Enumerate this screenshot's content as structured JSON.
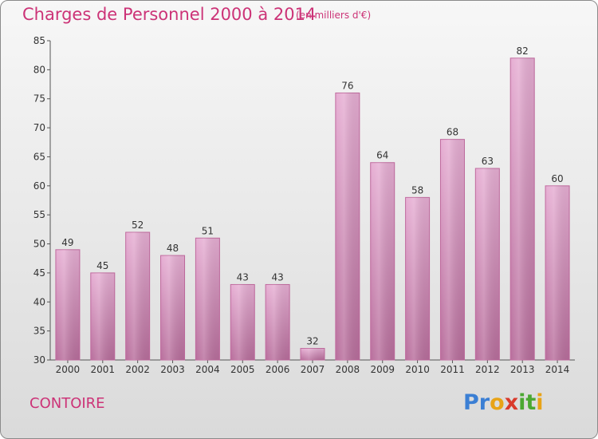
{
  "title": "Charges de Personnel 2000 à 2014",
  "subtitle": "(en milliers d'€)",
  "commune": "CONTOIRE",
  "logo": {
    "letters": [
      {
        "char": "P",
        "color": "#3b7fd4"
      },
      {
        "char": "r",
        "color": "#3b7fd4"
      },
      {
        "char": "o",
        "color": "#e8a317"
      },
      {
        "char": "x",
        "color": "#d93a2b"
      },
      {
        "char": "i",
        "color": "#4aa832"
      },
      {
        "char": "t",
        "color": "#4aa832"
      },
      {
        "char": "i",
        "color": "#e8a317"
      }
    ]
  },
  "chart_data": {
    "type": "bar",
    "title": "Charges de Personnel 2000 à 2014",
    "subtitle": "(en milliers d'€)",
    "categories": [
      "2000",
      "2001",
      "2002",
      "2003",
      "2004",
      "2005",
      "2006",
      "2007",
      "2008",
      "2009",
      "2010",
      "2011",
      "2012",
      "2013",
      "2014"
    ],
    "values": [
      49,
      45,
      52,
      48,
      51,
      43,
      43,
      32,
      76,
      64,
      58,
      68,
      63,
      82,
      60
    ],
    "ylim": [
      30,
      85
    ],
    "yticks": [
      30,
      35,
      40,
      45,
      50,
      55,
      60,
      65,
      70,
      75,
      80,
      85
    ],
    "grid": false,
    "bar_color": "#d98ab8",
    "data_labels": true
  }
}
